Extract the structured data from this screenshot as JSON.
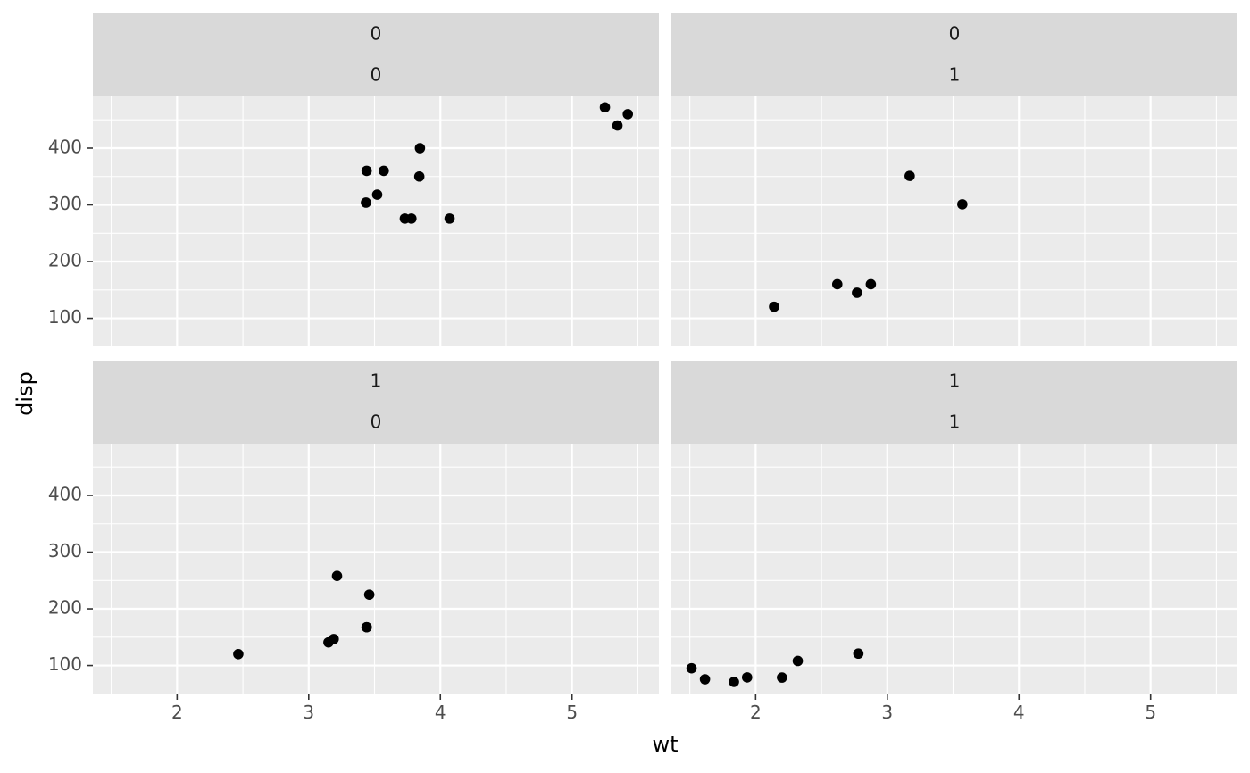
{
  "chart_data": {
    "type": "scatter",
    "xlabel": "wt",
    "ylabel": "disp",
    "xlim": [
      1.36,
      5.66
    ],
    "ylim": [
      50.5,
      491.3
    ],
    "x_ticks": [
      2,
      3,
      4,
      5
    ],
    "x_tick_labels": [
      "2",
      "3",
      "4",
      "5"
    ],
    "y_ticks": [
      100,
      200,
      300,
      400
    ],
    "y_tick_labels": [
      "100",
      "200",
      "300",
      "400"
    ],
    "grid": true,
    "legend": "none",
    "colors": {
      "panel_bg": "#ebebeb",
      "strip_bg": "#d9d9d9",
      "grid_major": "#ffffff",
      "point": "#000000"
    },
    "panels": [
      {
        "strip": [
          "0",
          "0"
        ],
        "points": [
          {
            "x": 5.25,
            "y": 472
          },
          {
            "x": 5.424,
            "y": 460
          },
          {
            "x": 5.345,
            "y": 440
          },
          {
            "x": 3.845,
            "y": 400
          },
          {
            "x": 3.44,
            "y": 360
          },
          {
            "x": 3.57,
            "y": 360
          },
          {
            "x": 3.84,
            "y": 350
          },
          {
            "x": 3.52,
            "y": 318
          },
          {
            "x": 3.435,
            "y": 304
          },
          {
            "x": 3.73,
            "y": 275.8
          },
          {
            "x": 3.78,
            "y": 275.8
          },
          {
            "x": 4.07,
            "y": 275.8
          }
        ]
      },
      {
        "strip": [
          "0",
          "1"
        ],
        "points": [
          {
            "x": 3.17,
            "y": 351
          },
          {
            "x": 3.57,
            "y": 301
          },
          {
            "x": 2.62,
            "y": 160
          },
          {
            "x": 2.875,
            "y": 160
          },
          {
            "x": 2.77,
            "y": 145
          },
          {
            "x": 2.14,
            "y": 120.3
          }
        ]
      },
      {
        "strip": [
          "1",
          "0"
        ],
        "points": [
          {
            "x": 3.215,
            "y": 258
          },
          {
            "x": 3.46,
            "y": 225
          },
          {
            "x": 3.44,
            "y": 167.6
          },
          {
            "x": 3.44,
            "y": 167.6
          },
          {
            "x": 3.19,
            "y": 146.7
          },
          {
            "x": 3.15,
            "y": 140.8
          },
          {
            "x": 2.465,
            "y": 120.1
          }
        ]
      },
      {
        "strip": [
          "1",
          "1"
        ],
        "points": [
          {
            "x": 2.78,
            "y": 121
          },
          {
            "x": 2.32,
            "y": 108
          },
          {
            "x": 1.513,
            "y": 95.1
          },
          {
            "x": 2.2,
            "y": 78.7
          },
          {
            "x": 1.935,
            "y": 79
          },
          {
            "x": 1.615,
            "y": 75.7
          },
          {
            "x": 1.835,
            "y": 71.1
          }
        ]
      }
    ]
  }
}
